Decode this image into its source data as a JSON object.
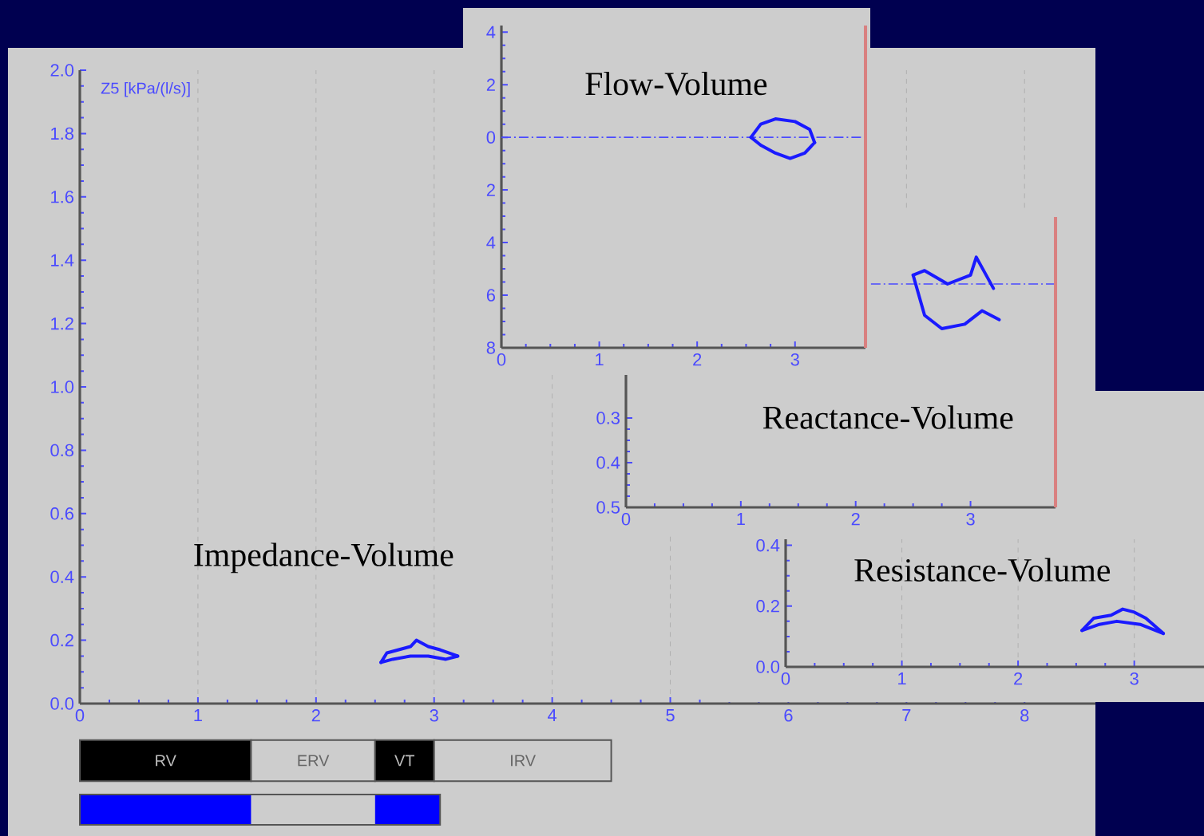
{
  "chart_data": [
    {
      "type": "line",
      "title": "Impedance-Volume",
      "ylabel": "Z5 [kPa/(l/s)]",
      "xlim": [
        0,
        8.6
      ],
      "xticks": [
        0,
        1,
        2,
        3,
        4,
        5,
        6,
        7,
        8
      ],
      "ylim": [
        0,
        2.0
      ],
      "yticks": [
        {
          "value": 0,
          "label": "0.0"
        },
        0.2,
        0.4,
        0.6,
        0.8,
        {
          "value": 1,
          "label": "1.0"
        },
        1.2,
        1.4,
        1.6,
        1.8,
        {
          "value": 2,
          "label": "2.0"
        }
      ],
      "grid": "x",
      "annotations": [
        "RV",
        "ERV",
        "VT",
        "IRV"
      ],
      "series": [
        {
          "color": "#1a1aff",
          "x": [
            2.55,
            2.6,
            2.7,
            2.8,
            2.85,
            2.95,
            3.05,
            3.2
          ],
          "values": [
            0.13,
            0.16,
            0.17,
            0.18,
            0.2,
            0.18,
            0.17,
            0.15
          ]
        },
        {
          "color": "#1a1aff",
          "x": [
            2.55,
            2.65,
            2.8,
            2.95,
            3.1,
            3.2
          ],
          "values": [
            0.13,
            0.14,
            0.15,
            0.15,
            0.14,
            0.15
          ]
        }
      ]
    },
    {
      "type": "line",
      "title": "Flow-Volume",
      "xlim": [
        0,
        3.72
      ],
      "xticks": [
        0,
        1,
        2,
        3
      ],
      "ylim": [
        -8,
        4.25
      ],
      "yticks": [
        4,
        2,
        0,
        {
          "value": -2,
          "label": "2"
        },
        {
          "value": -4,
          "label": "4"
        },
        {
          "value": -6,
          "label": "6"
        },
        {
          "value": -8,
          "label": "8"
        }
      ],
      "ref_lines": [
        {
          "axis": "y",
          "value": 0,
          "color": "#4a4aff",
          "line_style": "dashed"
        },
        {
          "axis": "x",
          "value": 3.72,
          "color": "#d98080"
        }
      ],
      "series": [
        {
          "color": "#1a1aff",
          "x": [
            2.55,
            2.65,
            2.8,
            3.0,
            3.15,
            3.2
          ],
          "values": [
            0,
            0.5,
            0.7,
            0.6,
            0.3,
            -0.2
          ]
        },
        {
          "color": "#1a1aff",
          "x": [
            2.55,
            2.65,
            2.8,
            2.95,
            3.1,
            3.2
          ],
          "values": [
            0,
            -0.3,
            -0.6,
            -0.8,
            -0.6,
            -0.2
          ]
        }
      ]
    },
    {
      "type": "line",
      "title": "Reactance-Volume",
      "xlim": [
        0,
        3.74
      ],
      "xticks": [
        0,
        1,
        2,
        3
      ],
      "ylim": [
        -0.5,
        0.15
      ],
      "yticks": [
        {
          "value": -0.3,
          "label": "0.3"
        },
        {
          "value": -0.4,
          "label": "0.4"
        },
        {
          "value": -0.5,
          "label": "0.5"
        }
      ],
      "ref_lines": [
        {
          "axis": "y",
          "value": 0,
          "color": "#4a4aff",
          "line_style": "dashed"
        },
        {
          "axis": "x",
          "value": 3.74,
          "color": "#d98080"
        }
      ],
      "series": [
        {
          "color": "#1a1aff",
          "x": [
            2.5,
            2.6,
            2.8,
            3.0,
            3.05,
            3.2
          ],
          "values": [
            0.02,
            0.03,
            0.0,
            0.02,
            0.06,
            -0.01
          ]
        },
        {
          "color": "#1a1aff",
          "x": [
            2.5,
            2.6,
            2.75,
            2.95,
            3.1,
            3.25
          ],
          "values": [
            0.02,
            -0.07,
            -0.1,
            -0.09,
            -0.06,
            -0.08
          ]
        }
      ]
    },
    {
      "type": "line",
      "title": "Resistance-Volume",
      "xlim": [
        0,
        3.6
      ],
      "xticks": [
        0,
        1,
        2,
        3
      ],
      "ylim": [
        0,
        0.42
      ],
      "yticks": [
        {
          "value": 0,
          "label": "0.0"
        },
        0.2,
        0.4
      ],
      "grid": "x",
      "series": [
        {
          "color": "#1a1aff",
          "x": [
            2.55,
            2.65,
            2.8,
            2.9,
            3.0,
            3.1,
            3.25
          ],
          "values": [
            0.12,
            0.16,
            0.17,
            0.19,
            0.18,
            0.16,
            0.11
          ]
        },
        {
          "color": "#1a1aff",
          "x": [
            2.55,
            2.7,
            2.85,
            3.05,
            3.25
          ],
          "values": [
            0.12,
            0.14,
            0.15,
            0.14,
            0.11
          ]
        }
      ]
    }
  ]
}
